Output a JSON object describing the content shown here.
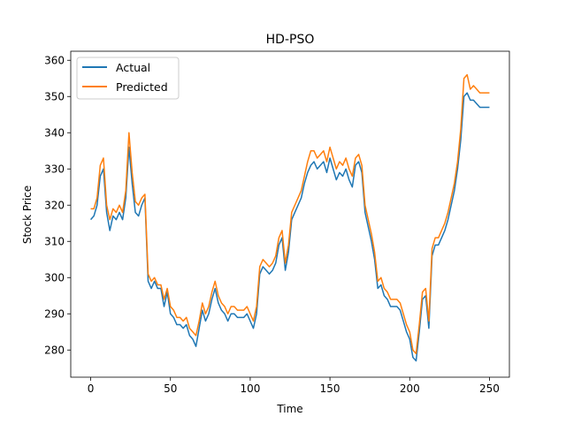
{
  "chart_data": {
    "type": "line",
    "title": "HD-PSO",
    "xlabel": "Time",
    "ylabel": "Stock Price",
    "xlim": [
      -12.5,
      262.5
    ],
    "ylim": [
      272.5,
      362.5
    ],
    "xticks": [
      0,
      50,
      100,
      150,
      200,
      250
    ],
    "yticks": [
      280,
      290,
      300,
      310,
      320,
      330,
      340,
      350,
      360
    ],
    "legend": "top-left",
    "grid": false,
    "series": [
      {
        "name": "Actual",
        "color": "#1f77b4",
        "x": [
          0,
          2,
          4,
          6,
          8,
          10,
          12,
          14,
          16,
          18,
          20,
          22,
          24,
          26,
          28,
          30,
          32,
          34,
          36,
          38,
          40,
          42,
          44,
          46,
          48,
          50,
          52,
          54,
          56,
          58,
          60,
          62,
          64,
          66,
          68,
          70,
          72,
          74,
          76,
          78,
          80,
          82,
          84,
          86,
          88,
          90,
          92,
          94,
          96,
          98,
          100,
          102,
          104,
          106,
          108,
          110,
          112,
          114,
          116,
          118,
          120,
          122,
          124,
          126,
          128,
          130,
          132,
          134,
          136,
          138,
          140,
          142,
          144,
          146,
          148,
          150,
          152,
          154,
          156,
          158,
          160,
          162,
          164,
          166,
          168,
          170,
          172,
          174,
          176,
          178,
          180,
          182,
          184,
          186,
          188,
          190,
          192,
          194,
          196,
          198,
          200,
          202,
          204,
          206,
          208,
          210,
          212,
          214,
          216,
          218,
          220,
          222,
          224,
          226,
          228,
          230,
          232,
          234,
          236,
          238,
          240,
          242,
          244,
          246,
          248,
          250
        ],
        "values": [
          316,
          317,
          320,
          328,
          330,
          318,
          313,
          317,
          316,
          318,
          316,
          322,
          336,
          326,
          318,
          317,
          320,
          322,
          299,
          297,
          299,
          297,
          297,
          292,
          296,
          290,
          289,
          287,
          287,
          286,
          287,
          284,
          283,
          281,
          286,
          291,
          288,
          290,
          294,
          297,
          293,
          291,
          290,
          288,
          290,
          290,
          289,
          289,
          289,
          290,
          288,
          286,
          290,
          301,
          303,
          302,
          301,
          302,
          304,
          309,
          311,
          302,
          307,
          316,
          318,
          320,
          322,
          326,
          329,
          331,
          332,
          330,
          331,
          332,
          329,
          333,
          330,
          327,
          329,
          328,
          330,
          327,
          325,
          331,
          332,
          329,
          318,
          314,
          310,
          305,
          297,
          298,
          295,
          294,
          292,
          292,
          292,
          291,
          288,
          285,
          283,
          278,
          277,
          285,
          294,
          295,
          286,
          306,
          309,
          309,
          311,
          313,
          316,
          320,
          324,
          330,
          338,
          350,
          351,
          349,
          349,
          348,
          347,
          347,
          347,
          347
        ],
        "_note": "values aligned to x above"
      },
      {
        "name": "Predicted",
        "color": "#ff7f0e",
        "x": [
          0,
          2,
          4,
          6,
          8,
          10,
          12,
          14,
          16,
          18,
          20,
          22,
          24,
          26,
          28,
          30,
          32,
          34,
          36,
          38,
          40,
          42,
          44,
          46,
          48,
          50,
          52,
          54,
          56,
          58,
          60,
          62,
          64,
          66,
          68,
          70,
          72,
          74,
          76,
          78,
          80,
          82,
          84,
          86,
          88,
          90,
          92,
          94,
          96,
          98,
          100,
          102,
          104,
          106,
          108,
          110,
          112,
          114,
          116,
          118,
          120,
          122,
          124,
          126,
          128,
          130,
          132,
          134,
          136,
          138,
          140,
          142,
          144,
          146,
          148,
          150,
          152,
          154,
          156,
          158,
          160,
          162,
          164,
          166,
          168,
          170,
          172,
          174,
          176,
          178,
          180,
          182,
          184,
          186,
          188,
          190,
          192,
          194,
          196,
          198,
          200,
          202,
          204,
          206,
          208,
          210,
          212,
          214,
          216,
          218,
          220,
          222,
          224,
          226,
          228,
          230,
          232,
          234,
          236,
          238,
          240,
          242,
          244,
          246,
          248,
          250
        ],
        "values": [
          319,
          319,
          322,
          331,
          333,
          320,
          316,
          319,
          318,
          320,
          318,
          324,
          340,
          329,
          321,
          320,
          322,
          323,
          301,
          299,
          300,
          298,
          298,
          294,
          297,
          292,
          291,
          289,
          289,
          288,
          289,
          286,
          285,
          284,
          288,
          293,
          290,
          292,
          296,
          299,
          295,
          293,
          292,
          290,
          292,
          292,
          291,
          291,
          291,
          292,
          290,
          288,
          292,
          303,
          305,
          304,
          303,
          304,
          306,
          311,
          313,
          304,
          309,
          318,
          320,
          322,
          324,
          328,
          332,
          335,
          335,
          333,
          334,
          335,
          332,
          336,
          333,
          330,
          332,
          331,
          333,
          330,
          328,
          333,
          334,
          331,
          320,
          316,
          312,
          307,
          299,
          300,
          297,
          296,
          294,
          294,
          294,
          293,
          290,
          287,
          285,
          280,
          279,
          287,
          296,
          297,
          288,
          308,
          311,
          311,
          313,
          315,
          318,
          322,
          326,
          332,
          341,
          355,
          356,
          352,
          353,
          352,
          351,
          351,
          351,
          351
        ]
      }
    ]
  }
}
